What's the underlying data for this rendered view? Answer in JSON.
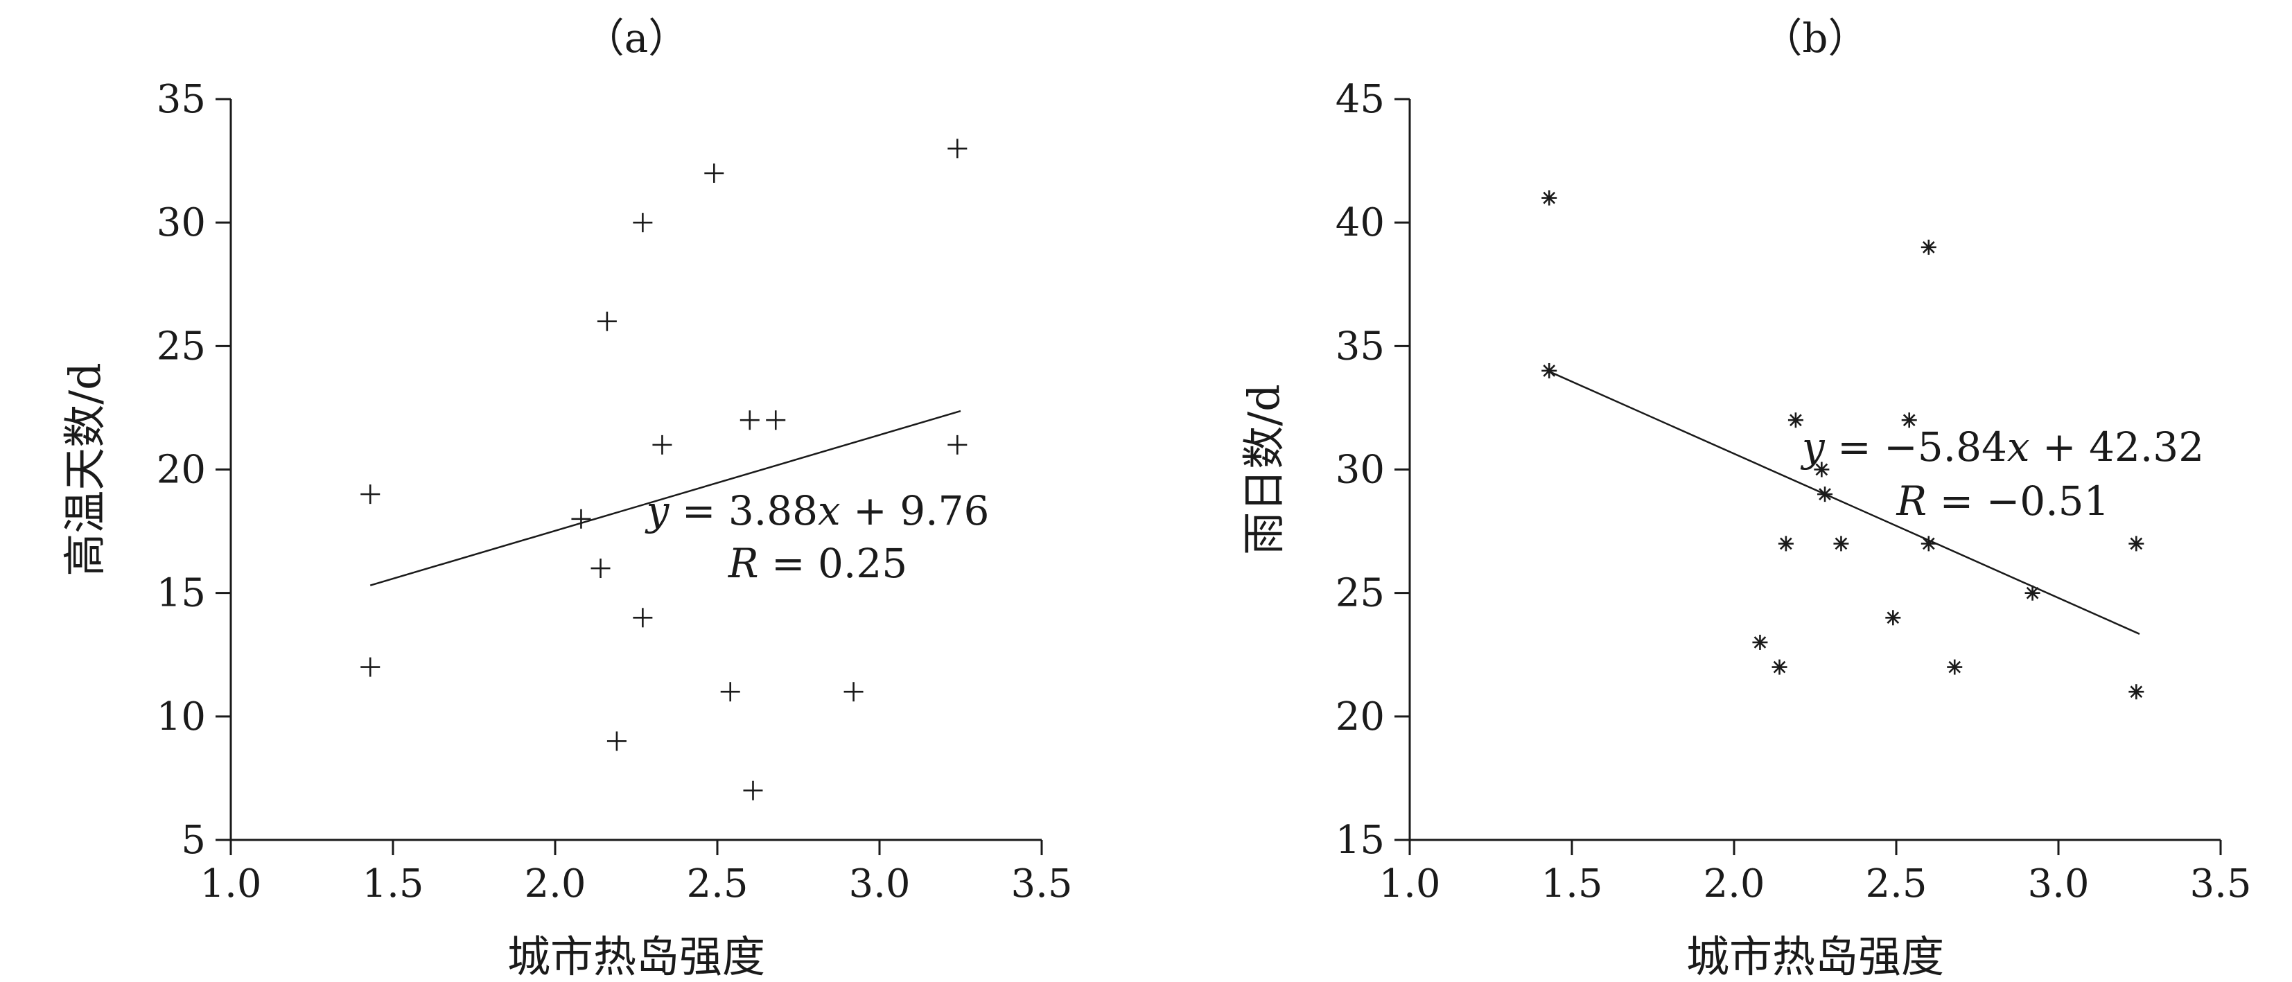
{
  "chart_data": [
    {
      "type": "scatter",
      "title": "（a）",
      "xlabel": "城市热岛强度",
      "ylabel": "高温天数/d",
      "xlim": [
        1.0,
        3.5
      ],
      "ylim": [
        5,
        35
      ],
      "xticks": [
        1.0,
        1.5,
        2.0,
        2.5,
        3.0,
        3.5
      ],
      "xtick_labels": [
        "1.0",
        "1.5",
        "2.0",
        "2.5",
        "3.0",
        "3.5"
      ],
      "yticks": [
        5,
        10,
        15,
        20,
        25,
        30,
        35
      ],
      "ytick_labels": [
        "5",
        "10",
        "15",
        "20",
        "25",
        "30",
        "35"
      ],
      "marker": "plus",
      "points": [
        {
          "x": 1.43,
          "y": 19
        },
        {
          "x": 1.43,
          "y": 12
        },
        {
          "x": 2.08,
          "y": 18
        },
        {
          "x": 2.14,
          "y": 16
        },
        {
          "x": 2.16,
          "y": 26
        },
        {
          "x": 2.19,
          "y": 9
        },
        {
          "x": 2.27,
          "y": 30
        },
        {
          "x": 2.27,
          "y": 14
        },
        {
          "x": 2.33,
          "y": 21
        },
        {
          "x": 2.49,
          "y": 32
        },
        {
          "x": 2.54,
          "y": 11
        },
        {
          "x": 2.6,
          "y": 22
        },
        {
          "x": 2.61,
          "y": 7
        },
        {
          "x": 2.68,
          "y": 22
        },
        {
          "x": 2.92,
          "y": 11
        },
        {
          "x": 3.24,
          "y": 33
        },
        {
          "x": 3.24,
          "y": 21
        }
      ],
      "fit": {
        "slope": 3.88,
        "intercept": 9.76,
        "x_range": [
          1.43,
          3.25
        ]
      },
      "annotations": {
        "equation_parts": [
          "y",
          " = 3.88",
          "x",
          " + 9.76"
        ],
        "r_parts": [
          "R",
          " = 0.25"
        ]
      }
    },
    {
      "type": "scatter",
      "title": "（b）",
      "xlabel": "城市热岛强度",
      "ylabel": "雨日数/d",
      "xlim": [
        1.0,
        3.5
      ],
      "ylim": [
        15,
        45
      ],
      "xticks": [
        1.0,
        1.5,
        2.0,
        2.5,
        3.0,
        3.5
      ],
      "xtick_labels": [
        "1.0",
        "1.5",
        "2.0",
        "2.5",
        "3.0",
        "3.5"
      ],
      "yticks": [
        15,
        20,
        25,
        30,
        35,
        40,
        45
      ],
      "ytick_labels": [
        "15",
        "20",
        "25",
        "30",
        "35",
        "40",
        "45"
      ],
      "marker": "asterisk",
      "points": [
        {
          "x": 1.43,
          "y": 41
        },
        {
          "x": 1.43,
          "y": 34
        },
        {
          "x": 2.08,
          "y": 23
        },
        {
          "x": 2.14,
          "y": 22
        },
        {
          "x": 2.16,
          "y": 27
        },
        {
          "x": 2.19,
          "y": 32
        },
        {
          "x": 2.27,
          "y": 30
        },
        {
          "x": 2.28,
          "y": 29
        },
        {
          "x": 2.33,
          "y": 27
        },
        {
          "x": 2.49,
          "y": 24
        },
        {
          "x": 2.54,
          "y": 32
        },
        {
          "x": 2.6,
          "y": 39
        },
        {
          "x": 2.6,
          "y": 27
        },
        {
          "x": 2.68,
          "y": 22
        },
        {
          "x": 2.92,
          "y": 25
        },
        {
          "x": 3.24,
          "y": 27
        },
        {
          "x": 3.24,
          "y": 21
        }
      ],
      "fit": {
        "slope": -5.84,
        "intercept": 42.32,
        "x_range": [
          1.43,
          3.25
        ]
      },
      "annotations": {
        "equation_parts": [
          "y",
          " = −5.84",
          "x",
          " + 42.32"
        ],
        "r_parts": [
          "R",
          " = −0.51"
        ]
      }
    }
  ]
}
